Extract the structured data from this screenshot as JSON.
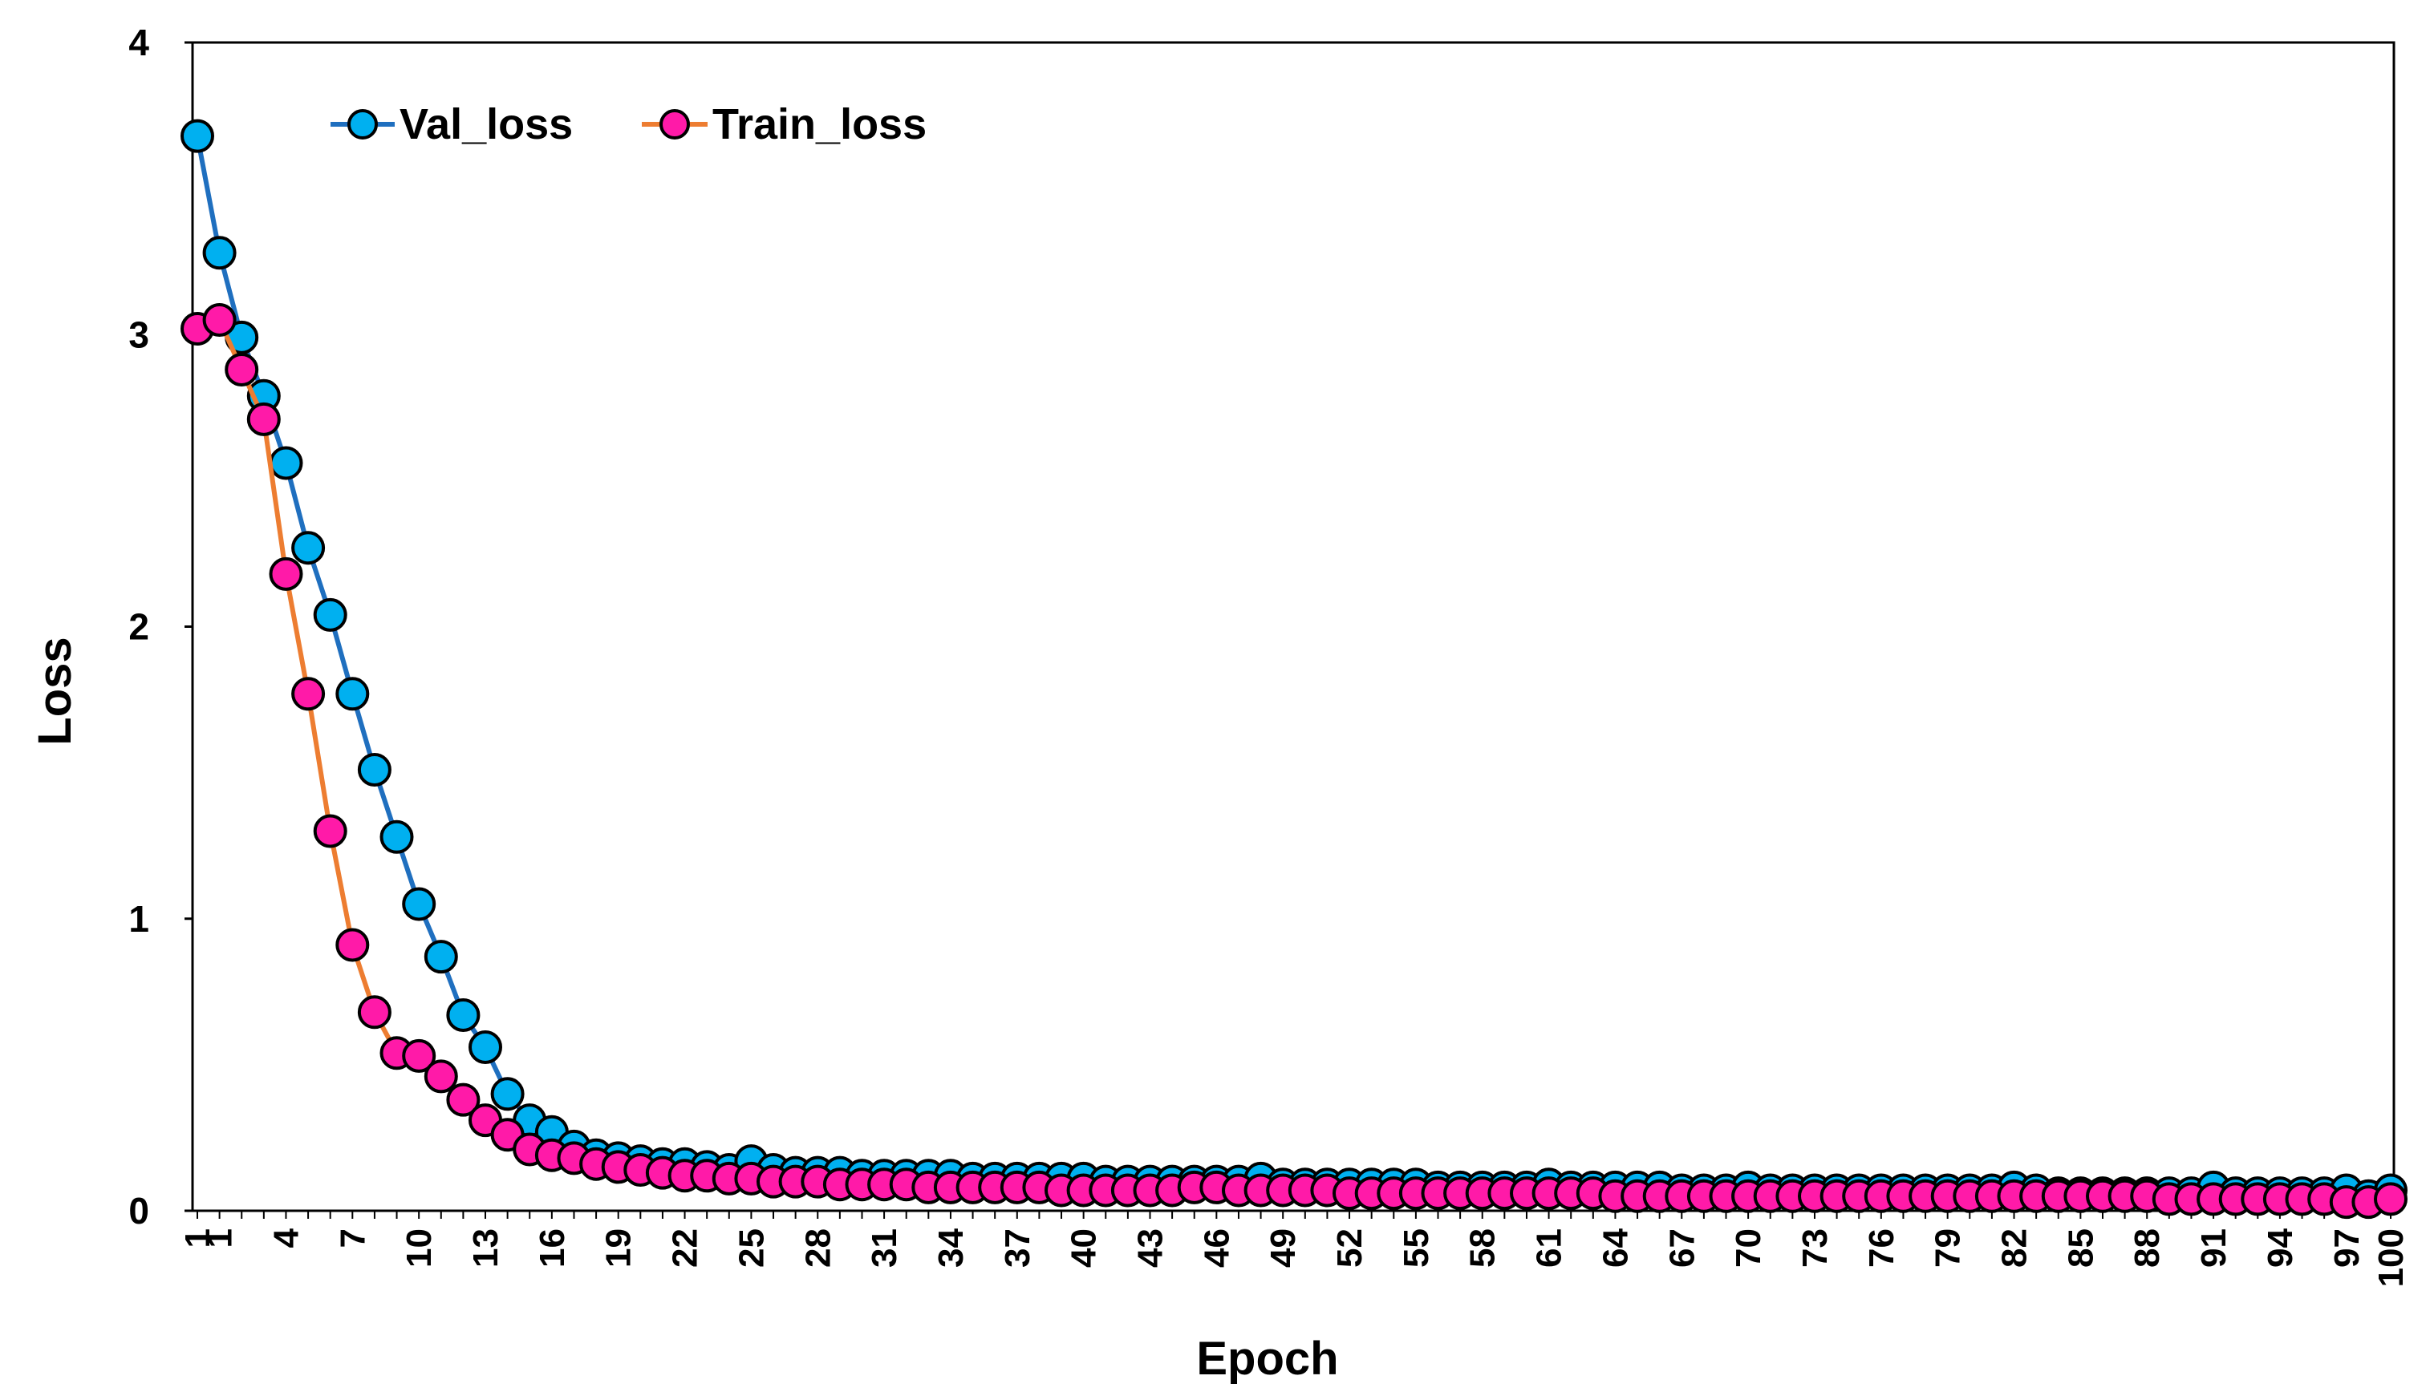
{
  "chart_data": {
    "type": "line",
    "xlabel": "Epoch",
    "ylabel": "Loss",
    "ylim": [
      0,
      4
    ],
    "yticks": [
      "0",
      "1",
      "2",
      "3",
      "4"
    ],
    "xticks": [
      "1",
      "1",
      "4",
      "7",
      "10",
      "13",
      "16",
      "19",
      "22",
      "25",
      "28",
      "31",
      "34",
      "37",
      "40",
      "43",
      "46",
      "49",
      "52",
      "55",
      "58",
      "61",
      "64",
      "67",
      "70",
      "73",
      "76",
      "79",
      "82",
      "85",
      "88",
      "91",
      "94",
      "97",
      "100"
    ],
    "legend_position": "top-left",
    "grid": false,
    "x": [
      1,
      2,
      3,
      4,
      5,
      6,
      7,
      8,
      9,
      10,
      11,
      12,
      13,
      14,
      15,
      16,
      17,
      18,
      19,
      20,
      21,
      22,
      23,
      24,
      25,
      26,
      27,
      28,
      29,
      30,
      31,
      32,
      33,
      34,
      35,
      36,
      37,
      38,
      39,
      40,
      41,
      42,
      43,
      44,
      45,
      46,
      47,
      48,
      49,
      50,
      51,
      52,
      53,
      54,
      55,
      56,
      57,
      58,
      59,
      60,
      61,
      62,
      63,
      64,
      65,
      66,
      67,
      68,
      69,
      70,
      71,
      72,
      73,
      74,
      75,
      76,
      77,
      78,
      79,
      80,
      81,
      82,
      83,
      84,
      85,
      86,
      87,
      88,
      89,
      90,
      91,
      92,
      93,
      94,
      95,
      96,
      97,
      98,
      99,
      100
    ],
    "series": [
      {
        "name": "Val_loss",
        "line_color": "#1f6fbf",
        "marker_color": "#00b0f0",
        "values": [
          3.68,
          3.28,
          2.99,
          2.79,
          2.56,
          2.27,
          2.04,
          1.77,
          1.51,
          1.28,
          1.05,
          0.87,
          0.67,
          0.56,
          0.4,
          0.31,
          0.27,
          0.22,
          0.19,
          0.18,
          0.17,
          0.16,
          0.16,
          0.15,
          0.14,
          0.17,
          0.14,
          0.13,
          0.13,
          0.13,
          0.12,
          0.12,
          0.12,
          0.12,
          0.12,
          0.11,
          0.11,
          0.11,
          0.11,
          0.11,
          0.11,
          0.1,
          0.1,
          0.1,
          0.1,
          0.1,
          0.1,
          0.1,
          0.11,
          0.09,
          0.09,
          0.09,
          0.09,
          0.09,
          0.09,
          0.09,
          0.08,
          0.08,
          0.08,
          0.08,
          0.08,
          0.09,
          0.08,
          0.08,
          0.08,
          0.08,
          0.08,
          0.07,
          0.07,
          0.07,
          0.08,
          0.07,
          0.07,
          0.07,
          0.07,
          0.07,
          0.07,
          0.07,
          0.07,
          0.07,
          0.07,
          0.07,
          0.08,
          0.07,
          0.06,
          0.06,
          0.06,
          0.06,
          0.06,
          0.06,
          0.06,
          0.08,
          0.06,
          0.06,
          0.06,
          0.06,
          0.06,
          0.07,
          0.05,
          0.07
        ]
      },
      {
        "name": "Train_loss",
        "line_color": "#ed7d31",
        "marker_color": "#ff1aa8",
        "values": [
          3.02,
          3.05,
          2.88,
          2.71,
          2.18,
          1.77,
          1.3,
          0.91,
          0.68,
          0.54,
          0.53,
          0.46,
          0.38,
          0.31,
          0.26,
          0.21,
          0.19,
          0.18,
          0.16,
          0.15,
          0.14,
          0.13,
          0.12,
          0.12,
          0.11,
          0.11,
          0.1,
          0.1,
          0.1,
          0.09,
          0.09,
          0.09,
          0.09,
          0.08,
          0.08,
          0.08,
          0.08,
          0.08,
          0.08,
          0.07,
          0.07,
          0.07,
          0.07,
          0.07,
          0.07,
          0.08,
          0.08,
          0.07,
          0.07,
          0.07,
          0.07,
          0.07,
          0.06,
          0.06,
          0.06,
          0.06,
          0.06,
          0.06,
          0.06,
          0.06,
          0.06,
          0.06,
          0.06,
          0.06,
          0.05,
          0.05,
          0.05,
          0.05,
          0.05,
          0.05,
          0.05,
          0.05,
          0.05,
          0.05,
          0.05,
          0.05,
          0.05,
          0.05,
          0.05,
          0.05,
          0.05,
          0.05,
          0.05,
          0.05,
          0.05,
          0.05,
          0.05,
          0.05,
          0.05,
          0.04,
          0.04,
          0.04,
          0.04,
          0.04,
          0.04,
          0.04,
          0.04,
          0.03,
          0.03,
          0.04
        ]
      }
    ]
  }
}
